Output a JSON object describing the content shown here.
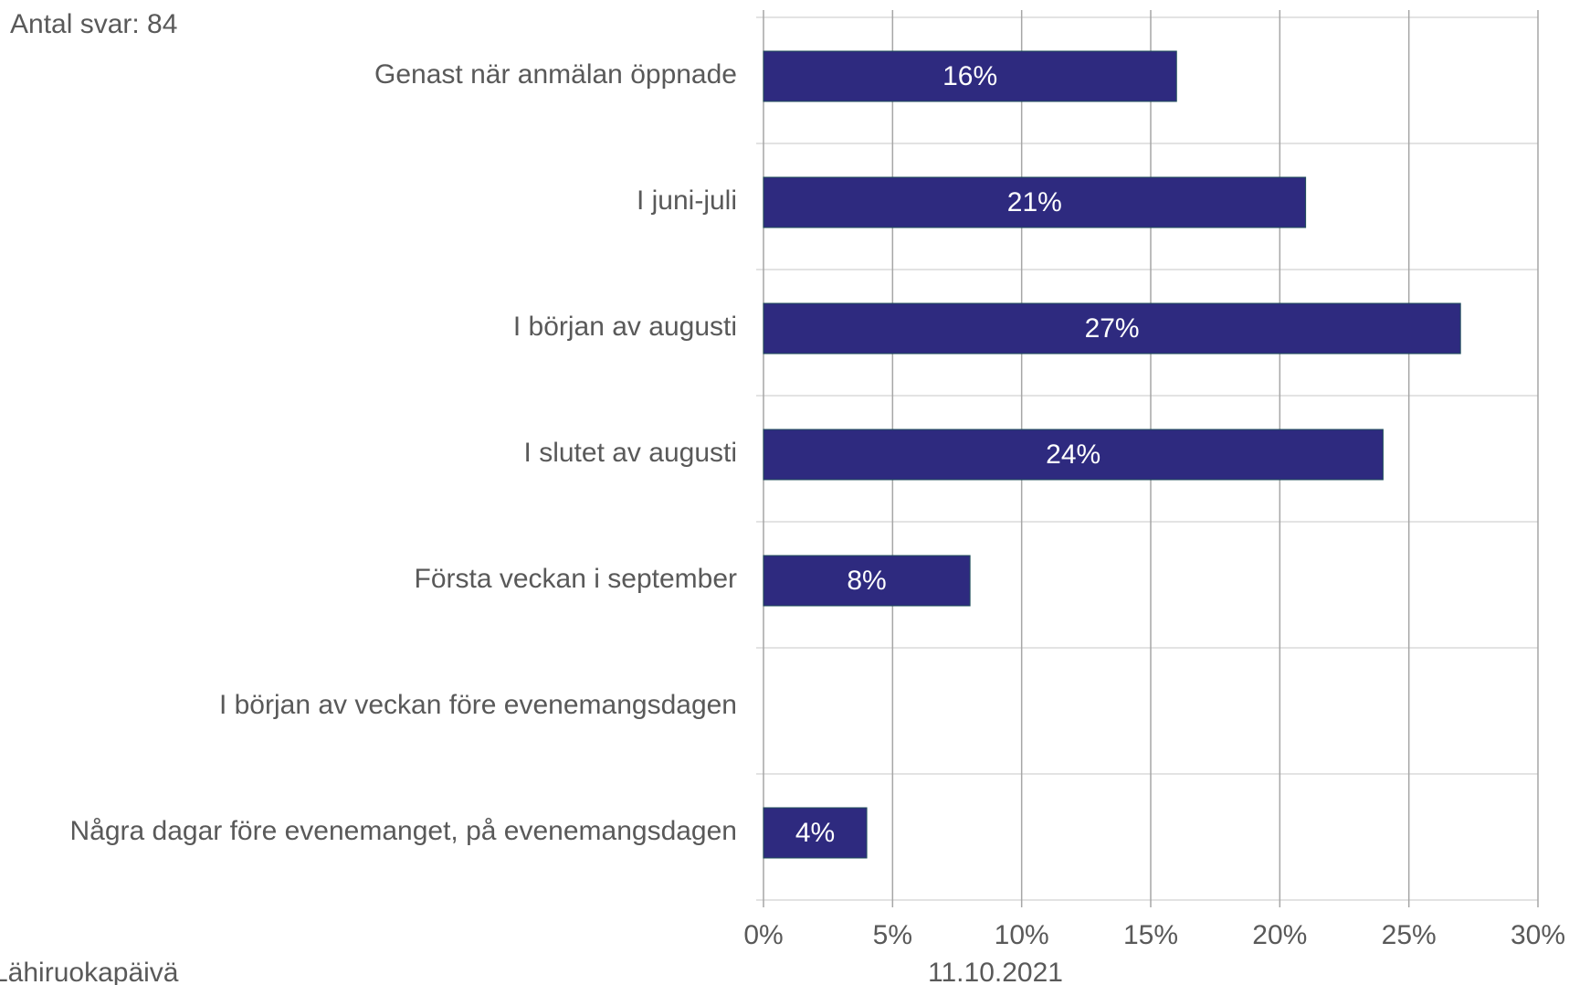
{
  "chart_data": {
    "type": "bar",
    "orientation": "horizontal",
    "subtitle": "Antal svar: 84",
    "categories": [
      "Genast när anmälan öppnade",
      "I juni-juli",
      "I början av augusti",
      "I slutet av augusti",
      "Första veckan i september",
      "I början av veckan före evenemangsdagen",
      "Några dagar före evenemanget, på evenemangsdagen"
    ],
    "values": [
      16,
      21,
      27,
      24,
      8,
      null,
      4
    ],
    "value_labels": [
      "16%",
      "21%",
      "27%",
      "24%",
      "8%",
      null,
      "4%"
    ],
    "color": "#2e2a7f",
    "xlim": [
      0,
      30
    ],
    "xticks": [
      {
        "value": 0,
        "label": "0%"
      },
      {
        "value": 5,
        "label": "5%"
      },
      {
        "value": 10,
        "label": "10%"
      },
      {
        "value": 15,
        "label": "15%"
      },
      {
        "value": 20,
        "label": "20%"
      },
      {
        "value": 25,
        "label": "25%"
      },
      {
        "value": 30,
        "label": "30%"
      }
    ],
    "grid": true,
    "footer_left": "Lähiruokapäivä",
    "footer_center": "11.10.2021"
  }
}
